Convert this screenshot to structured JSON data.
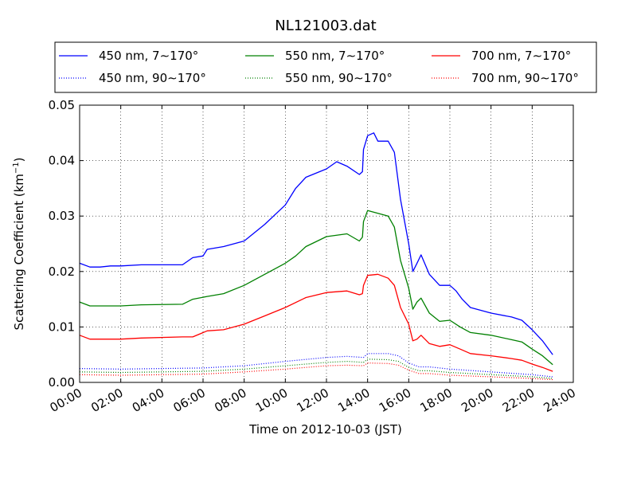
{
  "chart_data": {
    "type": "line",
    "title": "NL121003.dat",
    "xlabel": "Time on 2012-10-03 (JST)",
    "ylabel": "Scattering Coefficient (km",
    "ylabel_sup": "−1",
    "ylabel_end": ")",
    "xlim": [
      0,
      24
    ],
    "ylim": [
      0,
      0.05
    ],
    "grid": true,
    "legend_position": "top",
    "legend_columns": 3,
    "x_ticks": [
      0,
      2,
      4,
      6,
      8,
      10,
      12,
      14,
      16,
      18,
      20,
      22,
      24
    ],
    "x_tick_labels": [
      "00:00",
      "02:00",
      "04:00",
      "06:00",
      "08:00",
      "10:00",
      "12:00",
      "14:00",
      "16:00",
      "18:00",
      "20:00",
      "22:00",
      "24:00"
    ],
    "y_ticks": [
      0,
      0.01,
      0.02,
      0.03,
      0.04,
      0.05
    ],
    "y_tick_labels": [
      "0.00",
      "0.01",
      "0.02",
      "0.03",
      "0.04",
      "0.05"
    ],
    "series": [
      {
        "name": "450 nm, 7∼170°",
        "color": "#0000ff",
        "style": "solid",
        "points": [
          [
            0,
            0.0215
          ],
          [
            0.5,
            0.0208
          ],
          [
            1,
            0.0208
          ],
          [
            1.5,
            0.021
          ],
          [
            2,
            0.021
          ],
          [
            3,
            0.0212
          ],
          [
            4,
            0.0212
          ],
          [
            5,
            0.0212
          ],
          [
            5.5,
            0.0225
          ],
          [
            6,
            0.0228
          ],
          [
            6.2,
            0.024
          ],
          [
            7,
            0.0245
          ],
          [
            8,
            0.0255
          ],
          [
            9,
            0.0285
          ],
          [
            10,
            0.032
          ],
          [
            10.5,
            0.035
          ],
          [
            11,
            0.037
          ],
          [
            12,
            0.0385
          ],
          [
            12.5,
            0.0398
          ],
          [
            13,
            0.039
          ],
          [
            13.6,
            0.0375
          ],
          [
            13.75,
            0.038
          ],
          [
            13.8,
            0.042
          ],
          [
            14,
            0.0445
          ],
          [
            14.3,
            0.045
          ],
          [
            14.5,
            0.0435
          ],
          [
            15,
            0.0435
          ],
          [
            15.3,
            0.0415
          ],
          [
            15.6,
            0.033
          ],
          [
            16,
            0.025
          ],
          [
            16.2,
            0.02
          ],
          [
            16.4,
            0.0215
          ],
          [
            16.6,
            0.023
          ],
          [
            17,
            0.0195
          ],
          [
            17.5,
            0.0175
          ],
          [
            18,
            0.0175
          ],
          [
            18.3,
            0.0165
          ],
          [
            18.6,
            0.015
          ],
          [
            19,
            0.0135
          ],
          [
            20,
            0.0125
          ],
          [
            21,
            0.0118
          ],
          [
            21.5,
            0.0112
          ],
          [
            22,
            0.0095
          ],
          [
            22.5,
            0.0075
          ],
          [
            23,
            0.005
          ]
        ]
      },
      {
        "name": "550 nm, 7∼170°",
        "color": "#008000",
        "style": "solid",
        "points": [
          [
            0,
            0.0145
          ],
          [
            0.5,
            0.0138
          ],
          [
            2,
            0.0138
          ],
          [
            3,
            0.014
          ],
          [
            5,
            0.0141
          ],
          [
            5.5,
            0.015
          ],
          [
            6.2,
            0.0155
          ],
          [
            7,
            0.016
          ],
          [
            8,
            0.0175
          ],
          [
            9,
            0.0195
          ],
          [
            10,
            0.0215
          ],
          [
            10.5,
            0.0228
          ],
          [
            11,
            0.0245
          ],
          [
            12,
            0.0263
          ],
          [
            13,
            0.0268
          ],
          [
            13.6,
            0.0255
          ],
          [
            13.75,
            0.0262
          ],
          [
            13.8,
            0.029
          ],
          [
            14,
            0.031
          ],
          [
            14.5,
            0.0305
          ],
          [
            15,
            0.03
          ],
          [
            15.3,
            0.028
          ],
          [
            15.6,
            0.022
          ],
          [
            16,
            0.017
          ],
          [
            16.2,
            0.0132
          ],
          [
            16.4,
            0.0145
          ],
          [
            16.6,
            0.0152
          ],
          [
            17,
            0.0125
          ],
          [
            17.5,
            0.011
          ],
          [
            18,
            0.0112
          ],
          [
            18.5,
            0.01
          ],
          [
            19,
            0.009
          ],
          [
            20,
            0.0085
          ],
          [
            21,
            0.0077
          ],
          [
            21.5,
            0.0073
          ],
          [
            22,
            0.006
          ],
          [
            22.5,
            0.0048
          ],
          [
            23,
            0.0032
          ]
        ]
      },
      {
        "name": "700 nm, 7∼170°",
        "color": "#ff0000",
        "style": "solid",
        "points": [
          [
            0,
            0.0085
          ],
          [
            0.5,
            0.0078
          ],
          [
            2,
            0.0078
          ],
          [
            3,
            0.008
          ],
          [
            5,
            0.0082
          ],
          [
            5.5,
            0.0082
          ],
          [
            6.2,
            0.0093
          ],
          [
            7,
            0.0095
          ],
          [
            8,
            0.0105
          ],
          [
            9,
            0.012
          ],
          [
            10,
            0.0135
          ],
          [
            11,
            0.0153
          ],
          [
            12,
            0.0162
          ],
          [
            13,
            0.0165
          ],
          [
            13.6,
            0.0158
          ],
          [
            13.75,
            0.016
          ],
          [
            13.8,
            0.0175
          ],
          [
            14,
            0.0193
          ],
          [
            14.5,
            0.0195
          ],
          [
            15,
            0.0188
          ],
          [
            15.3,
            0.0175
          ],
          [
            15.6,
            0.0135
          ],
          [
            16,
            0.0105
          ],
          [
            16.2,
            0.0075
          ],
          [
            16.4,
            0.0078
          ],
          [
            16.6,
            0.0085
          ],
          [
            17,
            0.007
          ],
          [
            17.5,
            0.0065
          ],
          [
            18,
            0.0068
          ],
          [
            18.5,
            0.006
          ],
          [
            19,
            0.0052
          ],
          [
            20,
            0.0048
          ],
          [
            21,
            0.0043
          ],
          [
            21.5,
            0.004
          ],
          [
            22,
            0.0033
          ],
          [
            22.5,
            0.0027
          ],
          [
            23,
            0.002
          ]
        ]
      },
      {
        "name": "450 nm, 90∼170°",
        "color": "#0000ff",
        "style": "dotted",
        "points": [
          [
            0,
            0.0025
          ],
          [
            2,
            0.0024
          ],
          [
            4,
            0.0025
          ],
          [
            6,
            0.0026
          ],
          [
            8,
            0.003
          ],
          [
            10,
            0.0038
          ],
          [
            12,
            0.0045
          ],
          [
            13,
            0.0047
          ],
          [
            13.8,
            0.0045
          ],
          [
            14,
            0.0052
          ],
          [
            15,
            0.0052
          ],
          [
            15.5,
            0.0048
          ],
          [
            16,
            0.0035
          ],
          [
            16.5,
            0.0028
          ],
          [
            17,
            0.0028
          ],
          [
            18,
            0.0024
          ],
          [
            20,
            0.0019
          ],
          [
            22,
            0.0014
          ],
          [
            23,
            0.001
          ]
        ]
      },
      {
        "name": "550 nm, 90∼170°",
        "color": "#008000",
        "style": "dotted",
        "points": [
          [
            0,
            0.0019
          ],
          [
            2,
            0.0018
          ],
          [
            4,
            0.0019
          ],
          [
            6,
            0.002
          ],
          [
            8,
            0.0024
          ],
          [
            10,
            0.003
          ],
          [
            12,
            0.0036
          ],
          [
            13,
            0.0038
          ],
          [
            13.8,
            0.0036
          ],
          [
            14,
            0.0042
          ],
          [
            15,
            0.0041
          ],
          [
            15.5,
            0.0038
          ],
          [
            16,
            0.0027
          ],
          [
            16.5,
            0.0021
          ],
          [
            17,
            0.0021
          ],
          [
            18,
            0.0018
          ],
          [
            20,
            0.0014
          ],
          [
            22,
            0.001
          ],
          [
            23,
            0.0007
          ]
        ]
      },
      {
        "name": "700 nm, 90∼170°",
        "color": "#ff0000",
        "style": "dotted",
        "points": [
          [
            0,
            0.0014
          ],
          [
            2,
            0.0013
          ],
          [
            4,
            0.0014
          ],
          [
            6,
            0.0015
          ],
          [
            8,
            0.0019
          ],
          [
            10,
            0.0024
          ],
          [
            12,
            0.003
          ],
          [
            13,
            0.0031
          ],
          [
            13.8,
            0.003
          ],
          [
            14,
            0.0035
          ],
          [
            15,
            0.0034
          ],
          [
            15.5,
            0.0031
          ],
          [
            16,
            0.0022
          ],
          [
            16.5,
            0.0016
          ],
          [
            17,
            0.0016
          ],
          [
            18,
            0.0013
          ],
          [
            20,
            0.001
          ],
          [
            22,
            0.0007
          ],
          [
            23,
            0.0005
          ]
        ]
      }
    ]
  }
}
